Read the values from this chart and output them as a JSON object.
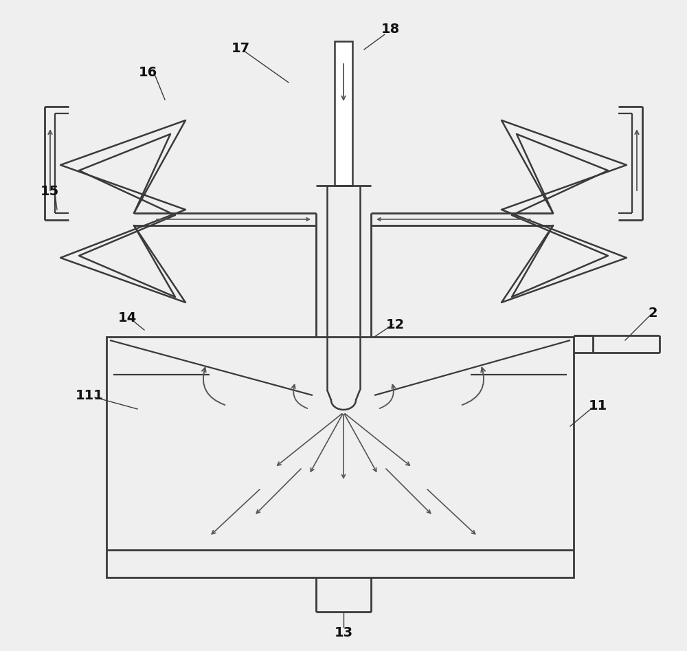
{
  "bg_color": "#efefef",
  "line_color": "#3a3a3a",
  "arrow_color": "#555555",
  "label_color": "#111111",
  "label_fontsize": 14,
  "label_fontweight": "bold",
  "figsize": [
    10.0,
    9.47
  ],
  "dpi": 100
}
